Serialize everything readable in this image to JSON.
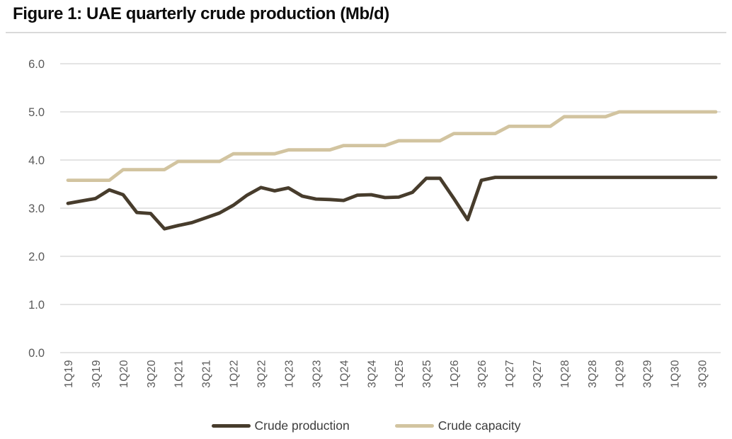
{
  "title": "Figure 1: UAE quarterly crude production (Mb/d)",
  "chart_data": {
    "type": "line",
    "title": "Figure 1: UAE quarterly crude production (Mb/d)",
    "xlabel": "",
    "ylabel": "",
    "ylim": [
      0,
      6
    ],
    "y_ticks": [
      "0.0",
      "1.0",
      "2.0",
      "3.0",
      "4.0",
      "5.0",
      "6.0"
    ],
    "grid": true,
    "legend_position": "bottom",
    "x_tick_every": 2,
    "categories": [
      "1Q19",
      "2Q19",
      "3Q19",
      "4Q19",
      "1Q20",
      "2Q20",
      "3Q20",
      "4Q20",
      "1Q21",
      "2Q21",
      "3Q21",
      "4Q21",
      "1Q22",
      "2Q22",
      "3Q22",
      "4Q22",
      "1Q23",
      "2Q23",
      "3Q23",
      "4Q23",
      "1Q24",
      "2Q24",
      "3Q24",
      "4Q24",
      "1Q25",
      "2Q25",
      "3Q25",
      "4Q25",
      "1Q26",
      "2Q26",
      "3Q26",
      "4Q26",
      "1Q27",
      "2Q27",
      "3Q27",
      "4Q27",
      "1Q28",
      "2Q28",
      "3Q28",
      "4Q28",
      "1Q29",
      "2Q29",
      "3Q29",
      "4Q29",
      "1Q30",
      "2Q30",
      "3Q30",
      "4Q30"
    ],
    "series": [
      {
        "name": "Crude production",
        "color": "#473c2c",
        "values": [
          3.1,
          3.15,
          3.2,
          3.38,
          3.28,
          2.91,
          2.89,
          2.57,
          2.64,
          2.7,
          2.8,
          2.9,
          3.06,
          3.27,
          3.43,
          3.36,
          3.42,
          3.25,
          3.19,
          3.18,
          3.16,
          3.27,
          3.28,
          3.22,
          3.23,
          3.33,
          3.62,
          3.62,
          3.2,
          2.76,
          3.58,
          3.64,
          3.64,
          3.64,
          3.64,
          3.64,
          3.64,
          3.64,
          3.64,
          3.64,
          3.64,
          3.64,
          3.64,
          3.64,
          3.64,
          3.64,
          3.64,
          3.64
        ]
      },
      {
        "name": "Crude capacity",
        "color": "#d2c4a0",
        "values": [
          3.58,
          3.58,
          3.58,
          3.58,
          3.8,
          3.8,
          3.8,
          3.8,
          3.97,
          3.97,
          3.97,
          3.97,
          4.13,
          4.13,
          4.13,
          4.13,
          4.21,
          4.21,
          4.21,
          4.21,
          4.3,
          4.3,
          4.3,
          4.3,
          4.4,
          4.4,
          4.4,
          4.4,
          4.55,
          4.55,
          4.55,
          4.55,
          4.7,
          4.7,
          4.7,
          4.7,
          4.9,
          4.9,
          4.9,
          4.9,
          5.0,
          5.0,
          5.0,
          5.0,
          5.0,
          5.0,
          5.0,
          5.0
        ]
      }
    ],
    "colors": {
      "gridline": "#dbdbdb",
      "axis_labels": "#595959",
      "title_separator": "#d9d9d9"
    }
  }
}
